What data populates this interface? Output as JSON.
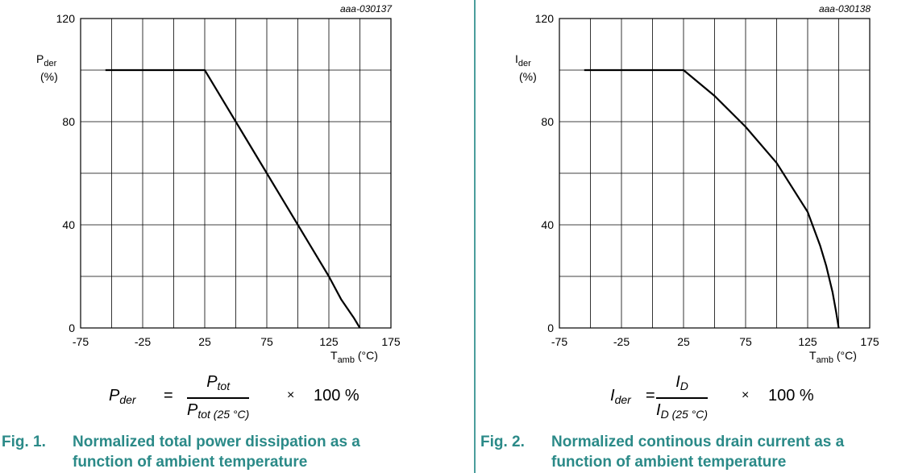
{
  "charts": [
    {
      "code": "aaa-030137",
      "ylabel_main": "P",
      "ylabel_sub": "der",
      "ylabel_unit": "(%)",
      "xlabel_main": "T",
      "xlabel_sub": "amb",
      "xlabel_unit": " (°C)",
      "formula": {
        "lhs_main": "P",
        "lhs_sub": "der",
        "eq": "=",
        "num_main": "P",
        "num_sub": "tot",
        "den_main": "P",
        "den_sub": "tot (25 °C)",
        "times": "×",
        "pct": "100 %"
      },
      "caption_num": "Fig. 1.",
      "caption_line1": "Normalized total power dissipation as a",
      "caption_line2": "function of ambient temperature"
    },
    {
      "code": "aaa-030138",
      "ylabel_main": "I",
      "ylabel_sub": "der",
      "ylabel_unit": "(%)",
      "xlabel_main": "T",
      "xlabel_sub": "amb",
      "xlabel_unit": " (°C)",
      "formula": {
        "lhs_main": "I",
        "lhs_sub": "der",
        "eq": "=",
        "num_main": "I",
        "num_sub": "D",
        "den_main": "I",
        "den_sub": "D (25 °C)",
        "times": "×",
        "pct": "100 %"
      },
      "caption_num": "Fig. 2.",
      "caption_line1": "Normalized continous drain current as a",
      "caption_line2": "function of ambient temperature"
    }
  ],
  "chart_data": [
    {
      "type": "line",
      "xlim": [
        -75,
        175
      ],
      "ylim": [
        0,
        120
      ],
      "x_ticks": [
        -75,
        -25,
        25,
        75,
        125,
        175
      ],
      "y_ticks": [
        0,
        40,
        80,
        120
      ],
      "grid": true,
      "series": [
        {
          "x": [
            -55,
            25,
            50,
            75,
            100,
            125,
            135,
            145,
            150
          ],
          "y": [
            100,
            100,
            80,
            60,
            40,
            20,
            11,
            4,
            0
          ]
        }
      ]
    },
    {
      "type": "line",
      "xlim": [
        -75,
        175
      ],
      "ylim": [
        0,
        120
      ],
      "x_ticks": [
        -75,
        -25,
        25,
        75,
        125,
        175
      ],
      "y_ticks": [
        0,
        40,
        80,
        120
      ],
      "grid": true,
      "series": [
        {
          "x": [
            -55,
            25,
            50,
            75,
            100,
            125,
            135,
            140,
            145,
            148,
            150
          ],
          "y": [
            100,
            100,
            90,
            78,
            64,
            45,
            32,
            24,
            14,
            6,
            0
          ]
        }
      ]
    }
  ]
}
